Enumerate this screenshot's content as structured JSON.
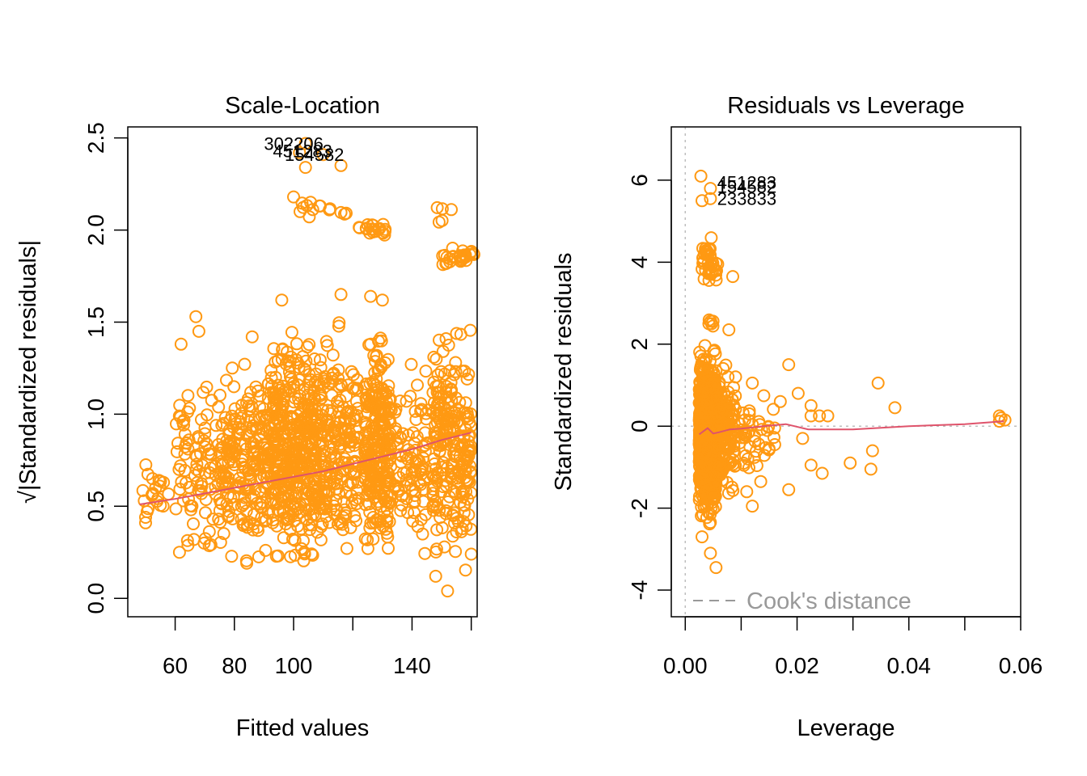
{
  "colors": {
    "points": "#FF9912",
    "smoother": "#DF536B",
    "reference": "#BEBEBE",
    "cook": "#999999"
  },
  "chart_data": [
    {
      "type": "scatter",
      "title": "Scale-Location",
      "xlabel": "Fitted values",
      "ylabel": "√|Standardized residuals|",
      "xlim": [
        44,
        162
      ],
      "ylim": [
        -0.1,
        2.56
      ],
      "x_ticks": [
        60,
        80,
        100,
        140
      ],
      "x_tick_marks": [
        60,
        80,
        100,
        120,
        140,
        160
      ],
      "y_ticks": [
        "0.0",
        "0.5",
        "1.0",
        "1.5",
        "2.0",
        "2.5"
      ],
      "outlier_labels": [
        {
          "text": "302206",
          "x": 90,
          "y": 2.47
        },
        {
          "text": "451283",
          "x": 93,
          "y": 2.43
        },
        {
          "text": "154582",
          "x": 97,
          "y": 2.41
        }
      ],
      "smoother": {
        "x": [
          48,
          60,
          70,
          80,
          90,
          100,
          110,
          120,
          130,
          140,
          150,
          160
        ],
        "y": [
          0.51,
          0.54,
          0.57,
          0.6,
          0.63,
          0.66,
          0.69,
          0.73,
          0.77,
          0.81,
          0.86,
          0.9
        ]
      },
      "point_groups": [
        {
          "x_range": [
            48,
            58
          ],
          "y_range": [
            0.35,
            0.8
          ],
          "n": 20
        },
        {
          "x_range": [
            60,
            75
          ],
          "y_range": [
            0.1,
            1.3
          ],
          "n": 90
        },
        {
          "x_range": [
            75,
            92
          ],
          "y_range": [
            0.1,
            1.4
          ],
          "n": 220
        },
        {
          "x_range": [
            92,
            108
          ],
          "y_range": [
            0.02,
            1.55
          ],
          "n": 420
        },
        {
          "x_range": [
            108,
            122
          ],
          "y_range": [
            0.02,
            1.6
          ],
          "n": 220
        },
        {
          "x_range": [
            124,
            133
          ],
          "y_range": [
            0.05,
            1.6
          ],
          "n": 260
        },
        {
          "x_range": [
            134,
            146
          ],
          "y_range": [
            0.1,
            1.4
          ],
          "n": 90
        },
        {
          "x_range": [
            147,
            160
          ],
          "y_range": [
            0.05,
            1.6
          ],
          "n": 240
        },
        {
          "x_range": [
            100,
            118
          ],
          "y_range": [
            2.05,
            2.2
          ],
          "n": 14
        },
        {
          "x_range": [
            122,
            132
          ],
          "y_range": [
            1.95,
            2.06
          ],
          "n": 20
        },
        {
          "x_range": [
            150,
            161
          ],
          "y_range": [
            1.78,
            1.92
          ],
          "n": 30
        },
        {
          "x_range": [
            148,
            155
          ],
          "y_range": [
            2.0,
            2.2
          ],
          "n": 5
        }
      ],
      "points": [
        {
          "x": 104,
          "y": 2.47
        },
        {
          "x": 104,
          "y": 2.34
        },
        {
          "x": 110,
          "y": 2.41
        },
        {
          "x": 116,
          "y": 2.35
        },
        {
          "x": 102,
          "y": 2.42
        },
        {
          "x": 100,
          "y": 2.18
        },
        {
          "x": 62,
          "y": 1.38
        },
        {
          "x": 67,
          "y": 1.53
        },
        {
          "x": 68,
          "y": 1.45
        },
        {
          "x": 86,
          "y": 1.42
        },
        {
          "x": 96,
          "y": 1.62
        },
        {
          "x": 116,
          "y": 1.65
        },
        {
          "x": 126,
          "y": 1.64
        },
        {
          "x": 130,
          "y": 1.62
        },
        {
          "x": 50,
          "y": 0.44
        },
        {
          "x": 50,
          "y": 0.41
        },
        {
          "x": 148,
          "y": 0.12
        },
        {
          "x": 152,
          "y": 0.04
        },
        {
          "x": 160,
          "y": 0.24
        }
      ]
    },
    {
      "type": "scatter",
      "title": "Residuals vs Leverage",
      "xlabel": "Leverage",
      "ylabel": "Standardized residuals",
      "xlim": [
        -0.0025,
        0.06
      ],
      "ylim": [
        -4.65,
        7.3
      ],
      "x_ticks": [
        "0.00",
        "0.02",
        "0.04",
        "0.06"
      ],
      "x_tick_marks": [
        0,
        0.01,
        0.02,
        0.03,
        0.04,
        0.05,
        0.06
      ],
      "y_ticks": [
        "-4",
        "-2",
        "0",
        "2",
        "4",
        "6"
      ],
      "y_tick_values": [
        -4,
        -2,
        0,
        2,
        4,
        6
      ],
      "legend": {
        "label": "Cook's distance",
        "position": "bottom-left"
      },
      "outlier_labels": [
        {
          "text": "451283",
          "x": 0.0057,
          "y": 5.95
        },
        {
          "text": "154582",
          "x": 0.0057,
          "y": 5.85
        },
        {
          "text": "233833",
          "x": 0.0057,
          "y": 5.55
        }
      ],
      "smoother": {
        "x": [
          0.0025,
          0.004,
          0.005,
          0.006,
          0.008,
          0.01,
          0.014,
          0.018,
          0.022,
          0.03,
          0.04,
          0.05,
          0.057
        ],
        "y": [
          -0.2,
          -0.05,
          -0.18,
          -0.15,
          -0.08,
          -0.06,
          0.0,
          0.05,
          -0.08,
          -0.08,
          0.0,
          0.05,
          0.12
        ]
      },
      "point_groups": [
        {
          "x_range": [
            0.0025,
            0.0055
          ],
          "y_range": [
            -2.7,
            2.3
          ],
          "n": 900
        },
        {
          "x_range": [
            0.0055,
            0.009
          ],
          "y_range": [
            -2.2,
            1.8
          ],
          "n": 140
        },
        {
          "x_range": [
            0.009,
            0.016
          ],
          "y_range": [
            -1.5,
            0.9
          ],
          "n": 45
        },
        {
          "x_range": [
            0.003,
            0.006
          ],
          "y_range": [
            3.1,
            4.8
          ],
          "n": 40
        },
        {
          "x_range": [
            0.004,
            0.005
          ],
          "y_range": [
            2.3,
            2.7
          ],
          "n": 6
        }
      ],
      "points": [
        {
          "x": 0.0028,
          "y": 6.1
        },
        {
          "x": 0.0045,
          "y": 5.8
        },
        {
          "x": 0.0045,
          "y": 5.55
        },
        {
          "x": 0.003,
          "y": 5.5
        },
        {
          "x": 0.0085,
          "y": 3.65
        },
        {
          "x": 0.0078,
          "y": 2.35
        },
        {
          "x": 0.009,
          "y": 1.2
        },
        {
          "x": 0.012,
          "y": 1.05
        },
        {
          "x": 0.0185,
          "y": 1.5
        },
        {
          "x": 0.0202,
          "y": 0.8
        },
        {
          "x": 0.017,
          "y": 0.6
        },
        {
          "x": 0.0225,
          "y": 0.5
        },
        {
          "x": 0.024,
          "y": 0.25
        },
        {
          "x": 0.0225,
          "y": 0.25
        },
        {
          "x": 0.0255,
          "y": 0.25
        },
        {
          "x": 0.0345,
          "y": 1.05
        },
        {
          "x": 0.0375,
          "y": 0.45
        },
        {
          "x": 0.0562,
          "y": 0.25
        },
        {
          "x": 0.0565,
          "y": 0.2
        },
        {
          "x": 0.0572,
          "y": 0.15
        },
        {
          "x": 0.0562,
          "y": 0.12
        },
        {
          "x": 0.0185,
          "y": -1.55
        },
        {
          "x": 0.0225,
          "y": -0.95
        },
        {
          "x": 0.0245,
          "y": -1.15
        },
        {
          "x": 0.0295,
          "y": -0.9
        },
        {
          "x": 0.0335,
          "y": -0.6
        },
        {
          "x": 0.0332,
          "y": -1.05
        },
        {
          "x": 0.021,
          "y": -0.3
        },
        {
          "x": 0.016,
          "y": -0.45
        },
        {
          "x": 0.012,
          "y": -1.95
        },
        {
          "x": 0.011,
          "y": -1.6
        },
        {
          "x": 0.0135,
          "y": -1.35
        },
        {
          "x": 0.0045,
          "y": -3.1
        },
        {
          "x": 0.0055,
          "y": -3.45
        },
        {
          "x": 0.003,
          "y": -2.7
        }
      ]
    }
  ]
}
